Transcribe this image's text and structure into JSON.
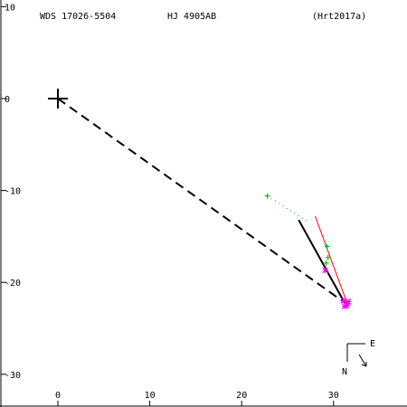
{
  "header": {
    "wds": "WDS 17026-5504",
    "name": "HJ 4905AB",
    "ref": "(Hrt2017a)"
  },
  "compass": {
    "east_label": "E",
    "north_label": "N"
  },
  "chart_data": {
    "type": "scatter",
    "xlim": [
      -6,
      38
    ],
    "ylim": [
      -34,
      11
    ],
    "x_ticks": [
      0,
      10,
      20,
      30
    ],
    "y_ticks": [
      10,
      0,
      -10,
      -20,
      -30
    ],
    "x_tick_labels": [
      "0",
      "10",
      "20",
      "30"
    ],
    "y_tick_labels": [
      "10",
      "0",
      "-10",
      "-20",
      "-30"
    ],
    "grid": false,
    "primary": {
      "x": 0,
      "y": 0
    },
    "primary_to_companion": {
      "from": [
        0,
        0
      ],
      "to": [
        31.2,
        -22.2
      ]
    },
    "orbit_arc": {
      "from": [
        26.2,
        -13.2
      ],
      "to": [
        31.3,
        -22.4
      ]
    },
    "red_line": {
      "from": [
        28.0,
        -12.8
      ],
      "to": [
        31.6,
        -22.6
      ]
    },
    "green_dotted": {
      "from": [
        22.8,
        -10.6
      ],
      "to": [
        27.2,
        -13.4
      ]
    },
    "green_plus": [
      {
        "x": 22.8,
        "y": -10.6
      },
      {
        "x": 29.3,
        "y": -16.1
      },
      {
        "x": 29.4,
        "y": -17.3
      },
      {
        "x": 29.2,
        "y": -17.9
      }
    ],
    "magenta_star": [
      {
        "x": 29.1,
        "y": -18.7
      },
      {
        "x": 31.1,
        "y": -22.0
      },
      {
        "x": 31.5,
        "y": -22.3
      },
      {
        "x": 31.2,
        "y": -22.6
      },
      {
        "x": 31.6,
        "y": -22.1
      },
      {
        "x": 31.4,
        "y": -22.5
      }
    ],
    "colors": {
      "axes": "#000000",
      "dashed": "#000000",
      "orbit": "#000000",
      "red": "#ff0000",
      "green": "#00aa00",
      "magenta": "#ff00ff"
    }
  }
}
